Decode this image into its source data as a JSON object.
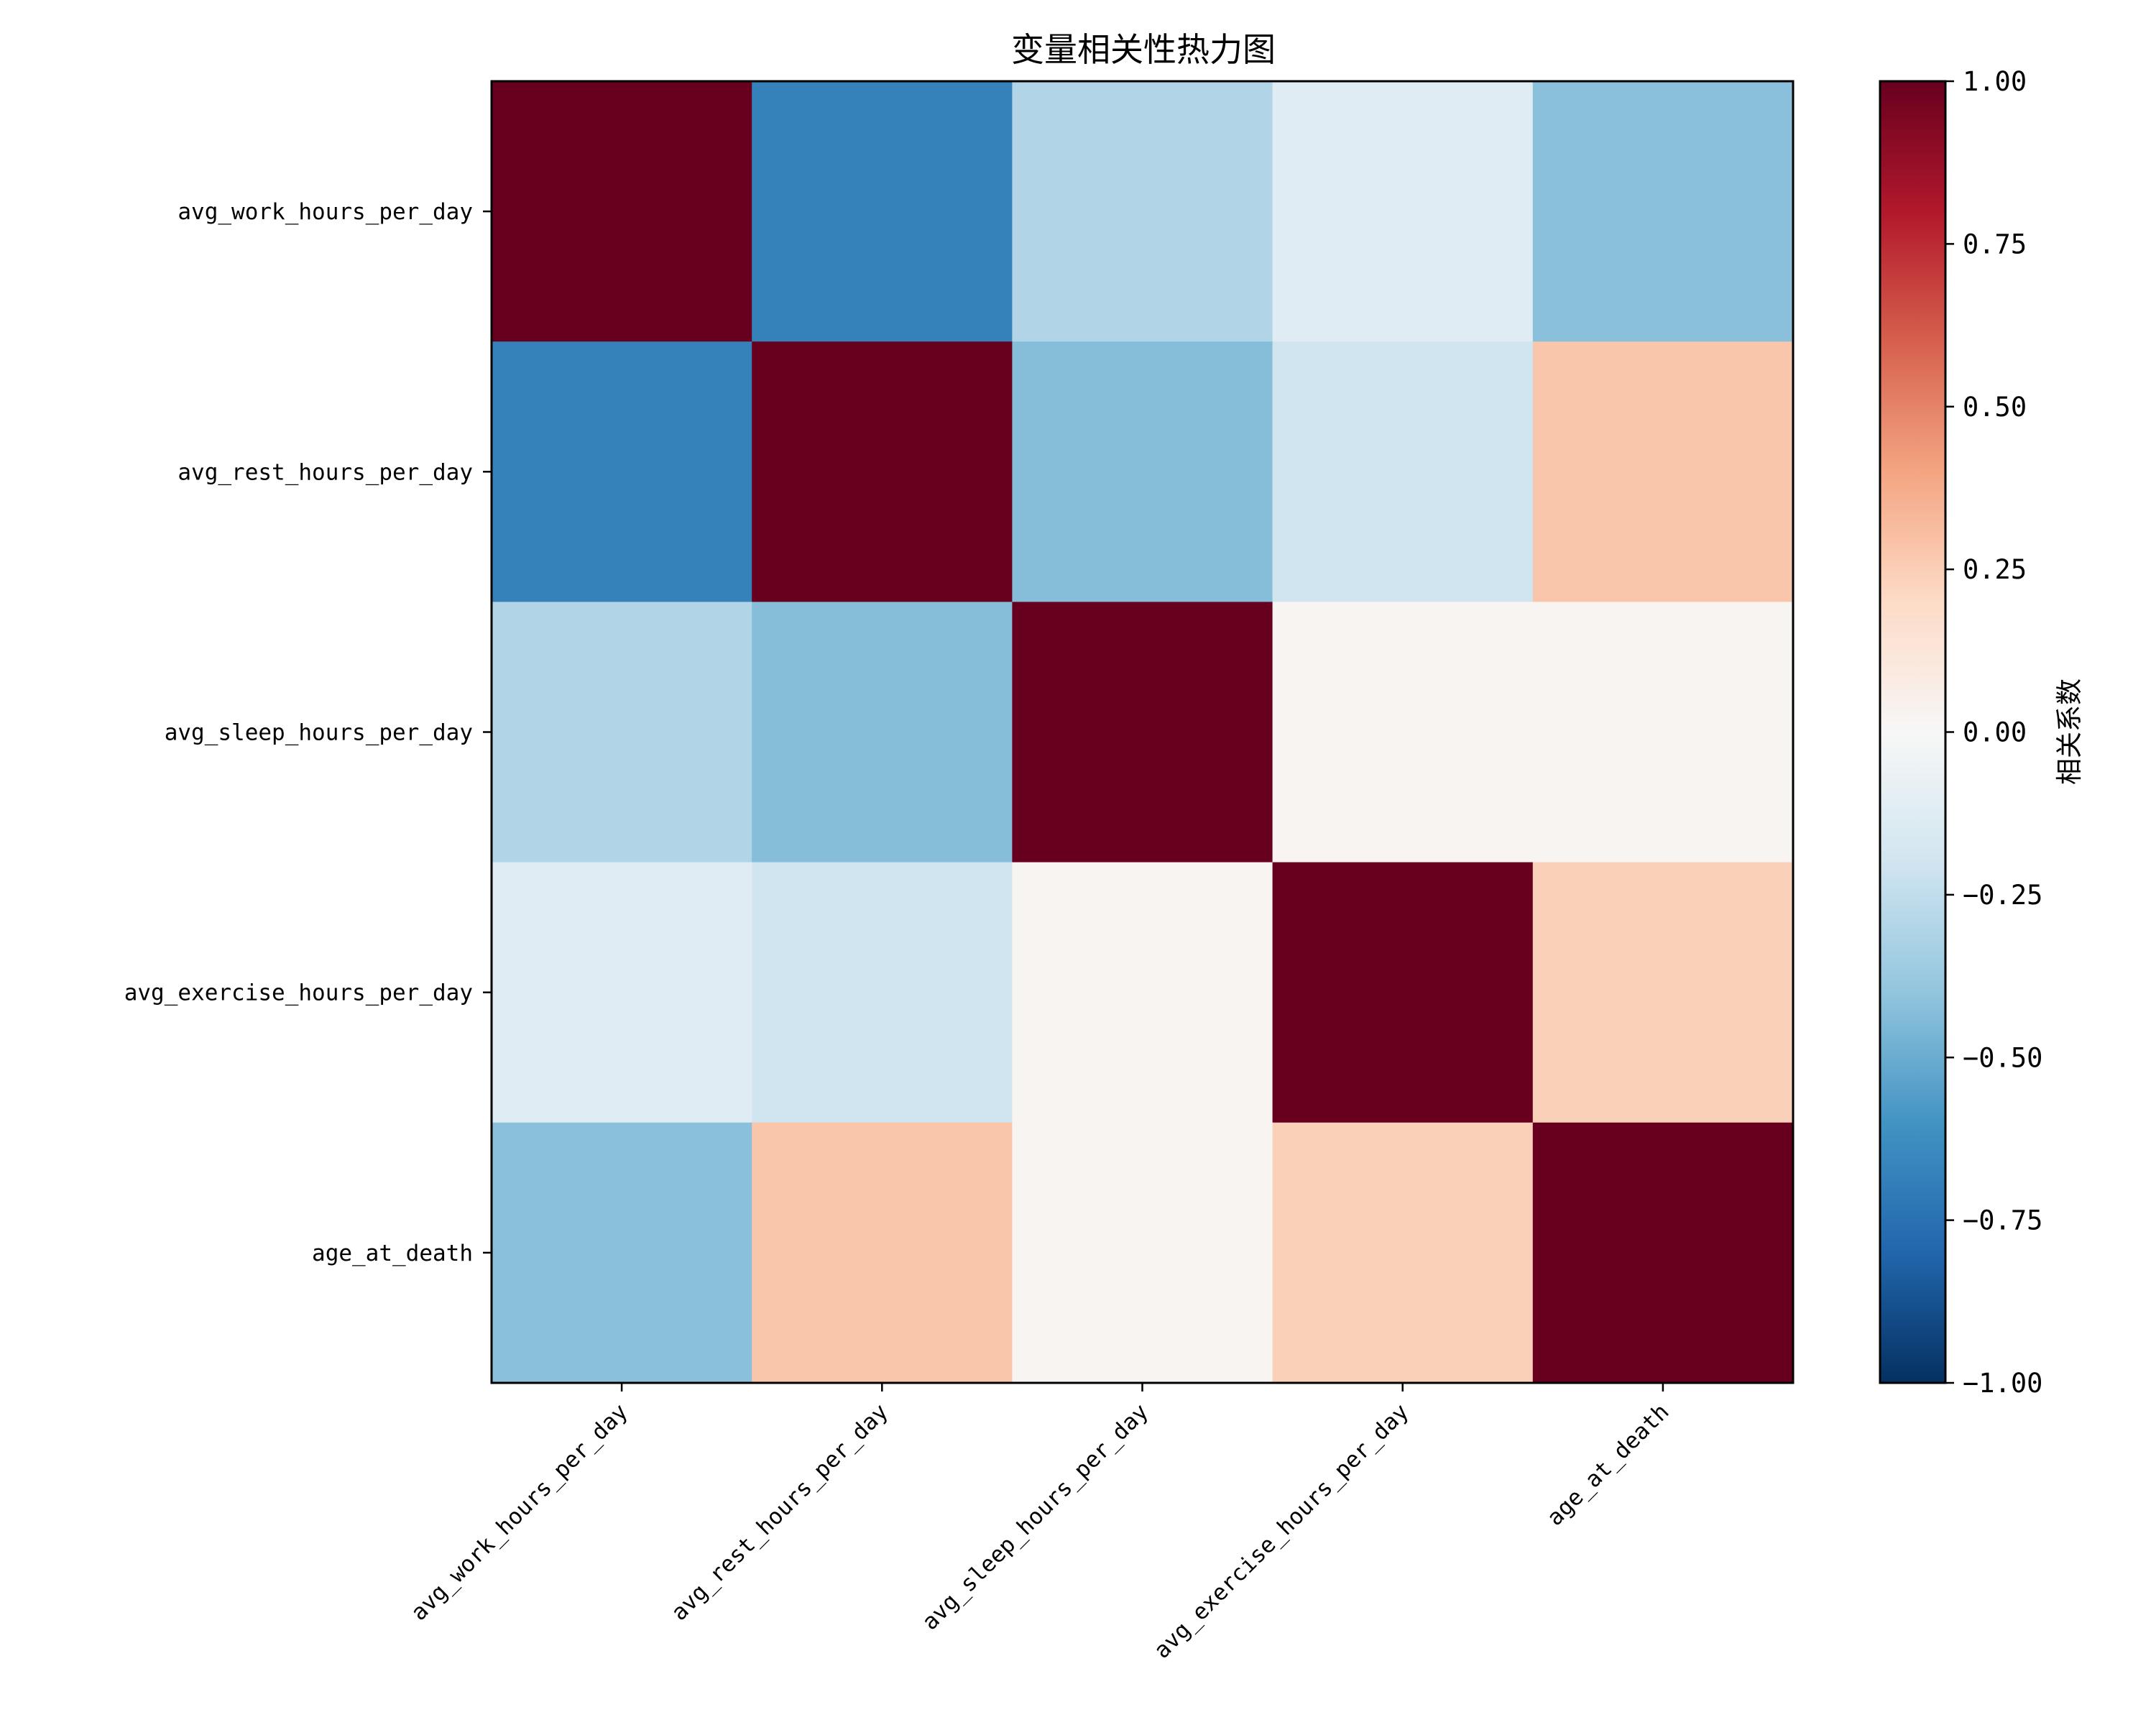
{
  "chart_data": {
    "type": "heatmap",
    "title": "变量相关性热力图",
    "variables": [
      "avg_work_hours_per_day",
      "avg_rest_hours_per_day",
      "avg_sleep_hours_per_day",
      "avg_exercise_hours_per_day",
      "age_at_death"
    ],
    "matrix": [
      [
        1.0,
        -0.68,
        -0.3,
        -0.12,
        -0.42
      ],
      [
        -0.68,
        1.0,
        -0.43,
        -0.2,
        0.28
      ],
      [
        -0.3,
        -0.43,
        1.0,
        0.02,
        0.02
      ],
      [
        -0.12,
        -0.2,
        0.02,
        1.0,
        0.24
      ],
      [
        -0.42,
        0.28,
        0.02,
        0.24,
        1.0
      ]
    ],
    "colormap": "RdBu_r",
    "vmin": -1.0,
    "vmax": 1.0,
    "colorbar": {
      "label": "相关系数",
      "ticks": [
        "1.00",
        "0.75",
        "0.50",
        "0.25",
        "0.00",
        "−0.25",
        "−0.50",
        "−0.75",
        "−1.00"
      ],
      "tick_values": [
        1.0,
        0.75,
        0.5,
        0.25,
        0.0,
        -0.25,
        -0.5,
        -0.75,
        -1.0
      ]
    },
    "xlabel": "",
    "ylabel": "",
    "x_tick_rotation": 45
  }
}
